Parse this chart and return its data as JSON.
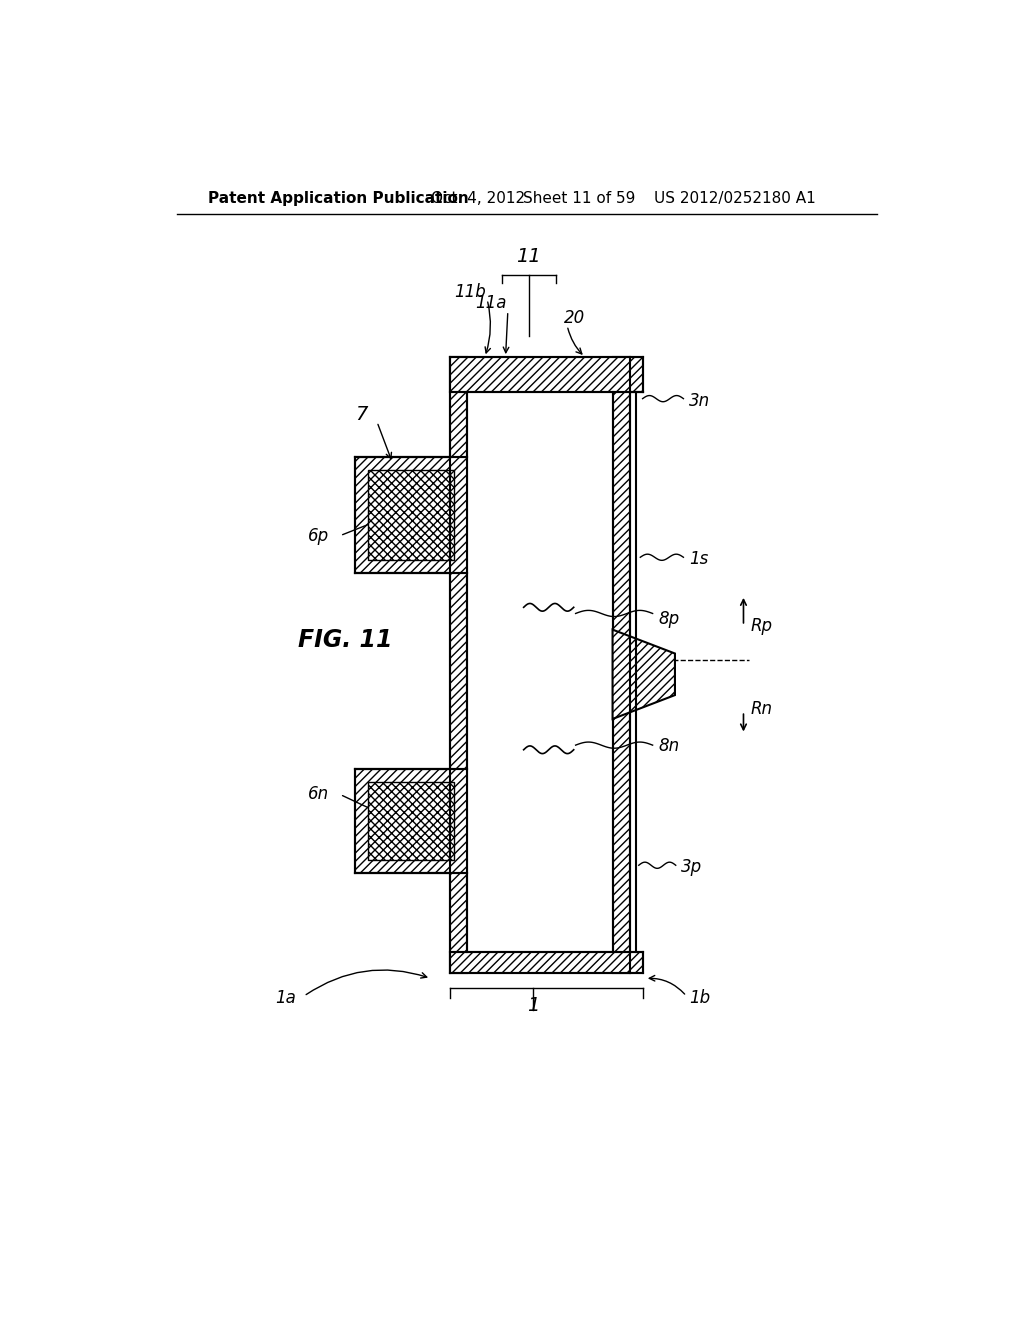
{
  "bg_color": "#ffffff",
  "header_text": "Patent Application Publication",
  "header_date": "Oct. 4, 2012",
  "header_sheet": "Sheet 11 of 59",
  "header_patent": "US 2012/0252180 A1",
  "fig_label": "FIG. 11"
}
